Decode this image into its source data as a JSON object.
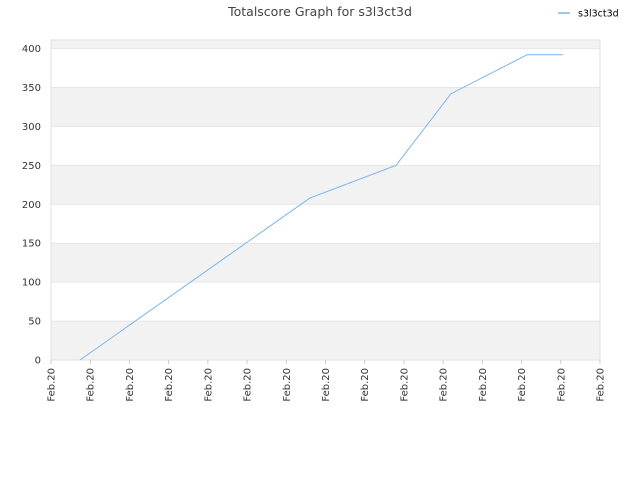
{
  "chart_data": {
    "type": "line",
    "title": "Totalscore Graph for s3l3ct3d",
    "x": [
      0.74,
      6.6,
      8.8,
      10.2,
      12.14,
      13.06
    ],
    "series": [
      {
        "name": "s3l3ct3d",
        "color": "#7cb5ec",
        "values": [
          0,
          208,
          250,
          342,
          392,
          392
        ]
      }
    ],
    "xlim": [
      0,
      14
    ],
    "xticks": [
      {
        "value": 0,
        "label": "Feb.20"
      },
      {
        "value": 1,
        "label": "Feb.20"
      },
      {
        "value": 2,
        "label": "Feb.20"
      },
      {
        "value": 3,
        "label": "Feb.20"
      },
      {
        "value": 4,
        "label": "Feb.20"
      },
      {
        "value": 5,
        "label": "Feb.20"
      },
      {
        "value": 6,
        "label": "Feb.20"
      },
      {
        "value": 7,
        "label": "Feb.20"
      },
      {
        "value": 8,
        "label": "Feb.20"
      },
      {
        "value": 9,
        "label": "Feb.20"
      },
      {
        "value": 10,
        "label": "Feb.20"
      },
      {
        "value": 11,
        "label": "Feb.20"
      },
      {
        "value": 12,
        "label": "Feb.20"
      },
      {
        "value": 13,
        "label": "Feb.20"
      },
      {
        "value": 14,
        "label": "Feb.20"
      }
    ],
    "ylim": [
      0,
      411
    ],
    "yticks": [
      0,
      50,
      100,
      150,
      200,
      250,
      300,
      350,
      400
    ],
    "grid": true,
    "legend": "top-right"
  }
}
